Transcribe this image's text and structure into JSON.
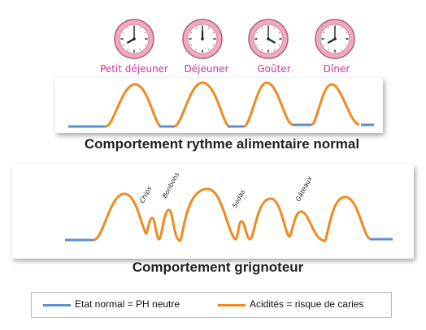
{
  "meals": [
    {
      "label": "Petit déjeuner",
      "hour": 8,
      "minute": 0
    },
    {
      "label": "Déjeuner",
      "hour": 12,
      "minute": 0
    },
    {
      "label": "Goûter",
      "hour": 16,
      "minute": 0
    },
    {
      "label": "Dîner",
      "hour": 20,
      "minute": 0
    }
  ],
  "sections": {
    "normal_title": "Comportement rythme alimentaire normal",
    "snack_title": "Comportement grignoteur"
  },
  "snacks": [
    "Chips",
    "Bonbons",
    "Sodas",
    "Gâteaux"
  ],
  "legend": {
    "neutral_label": "Etat normal = PH neutre",
    "acid_label": "Acidités = risque de caries"
  },
  "colors": {
    "neutral": "#5b8fcc",
    "acid": "#ee8a22",
    "clock_label": "#d6338f",
    "clock_face": "#f2a9bf"
  }
}
